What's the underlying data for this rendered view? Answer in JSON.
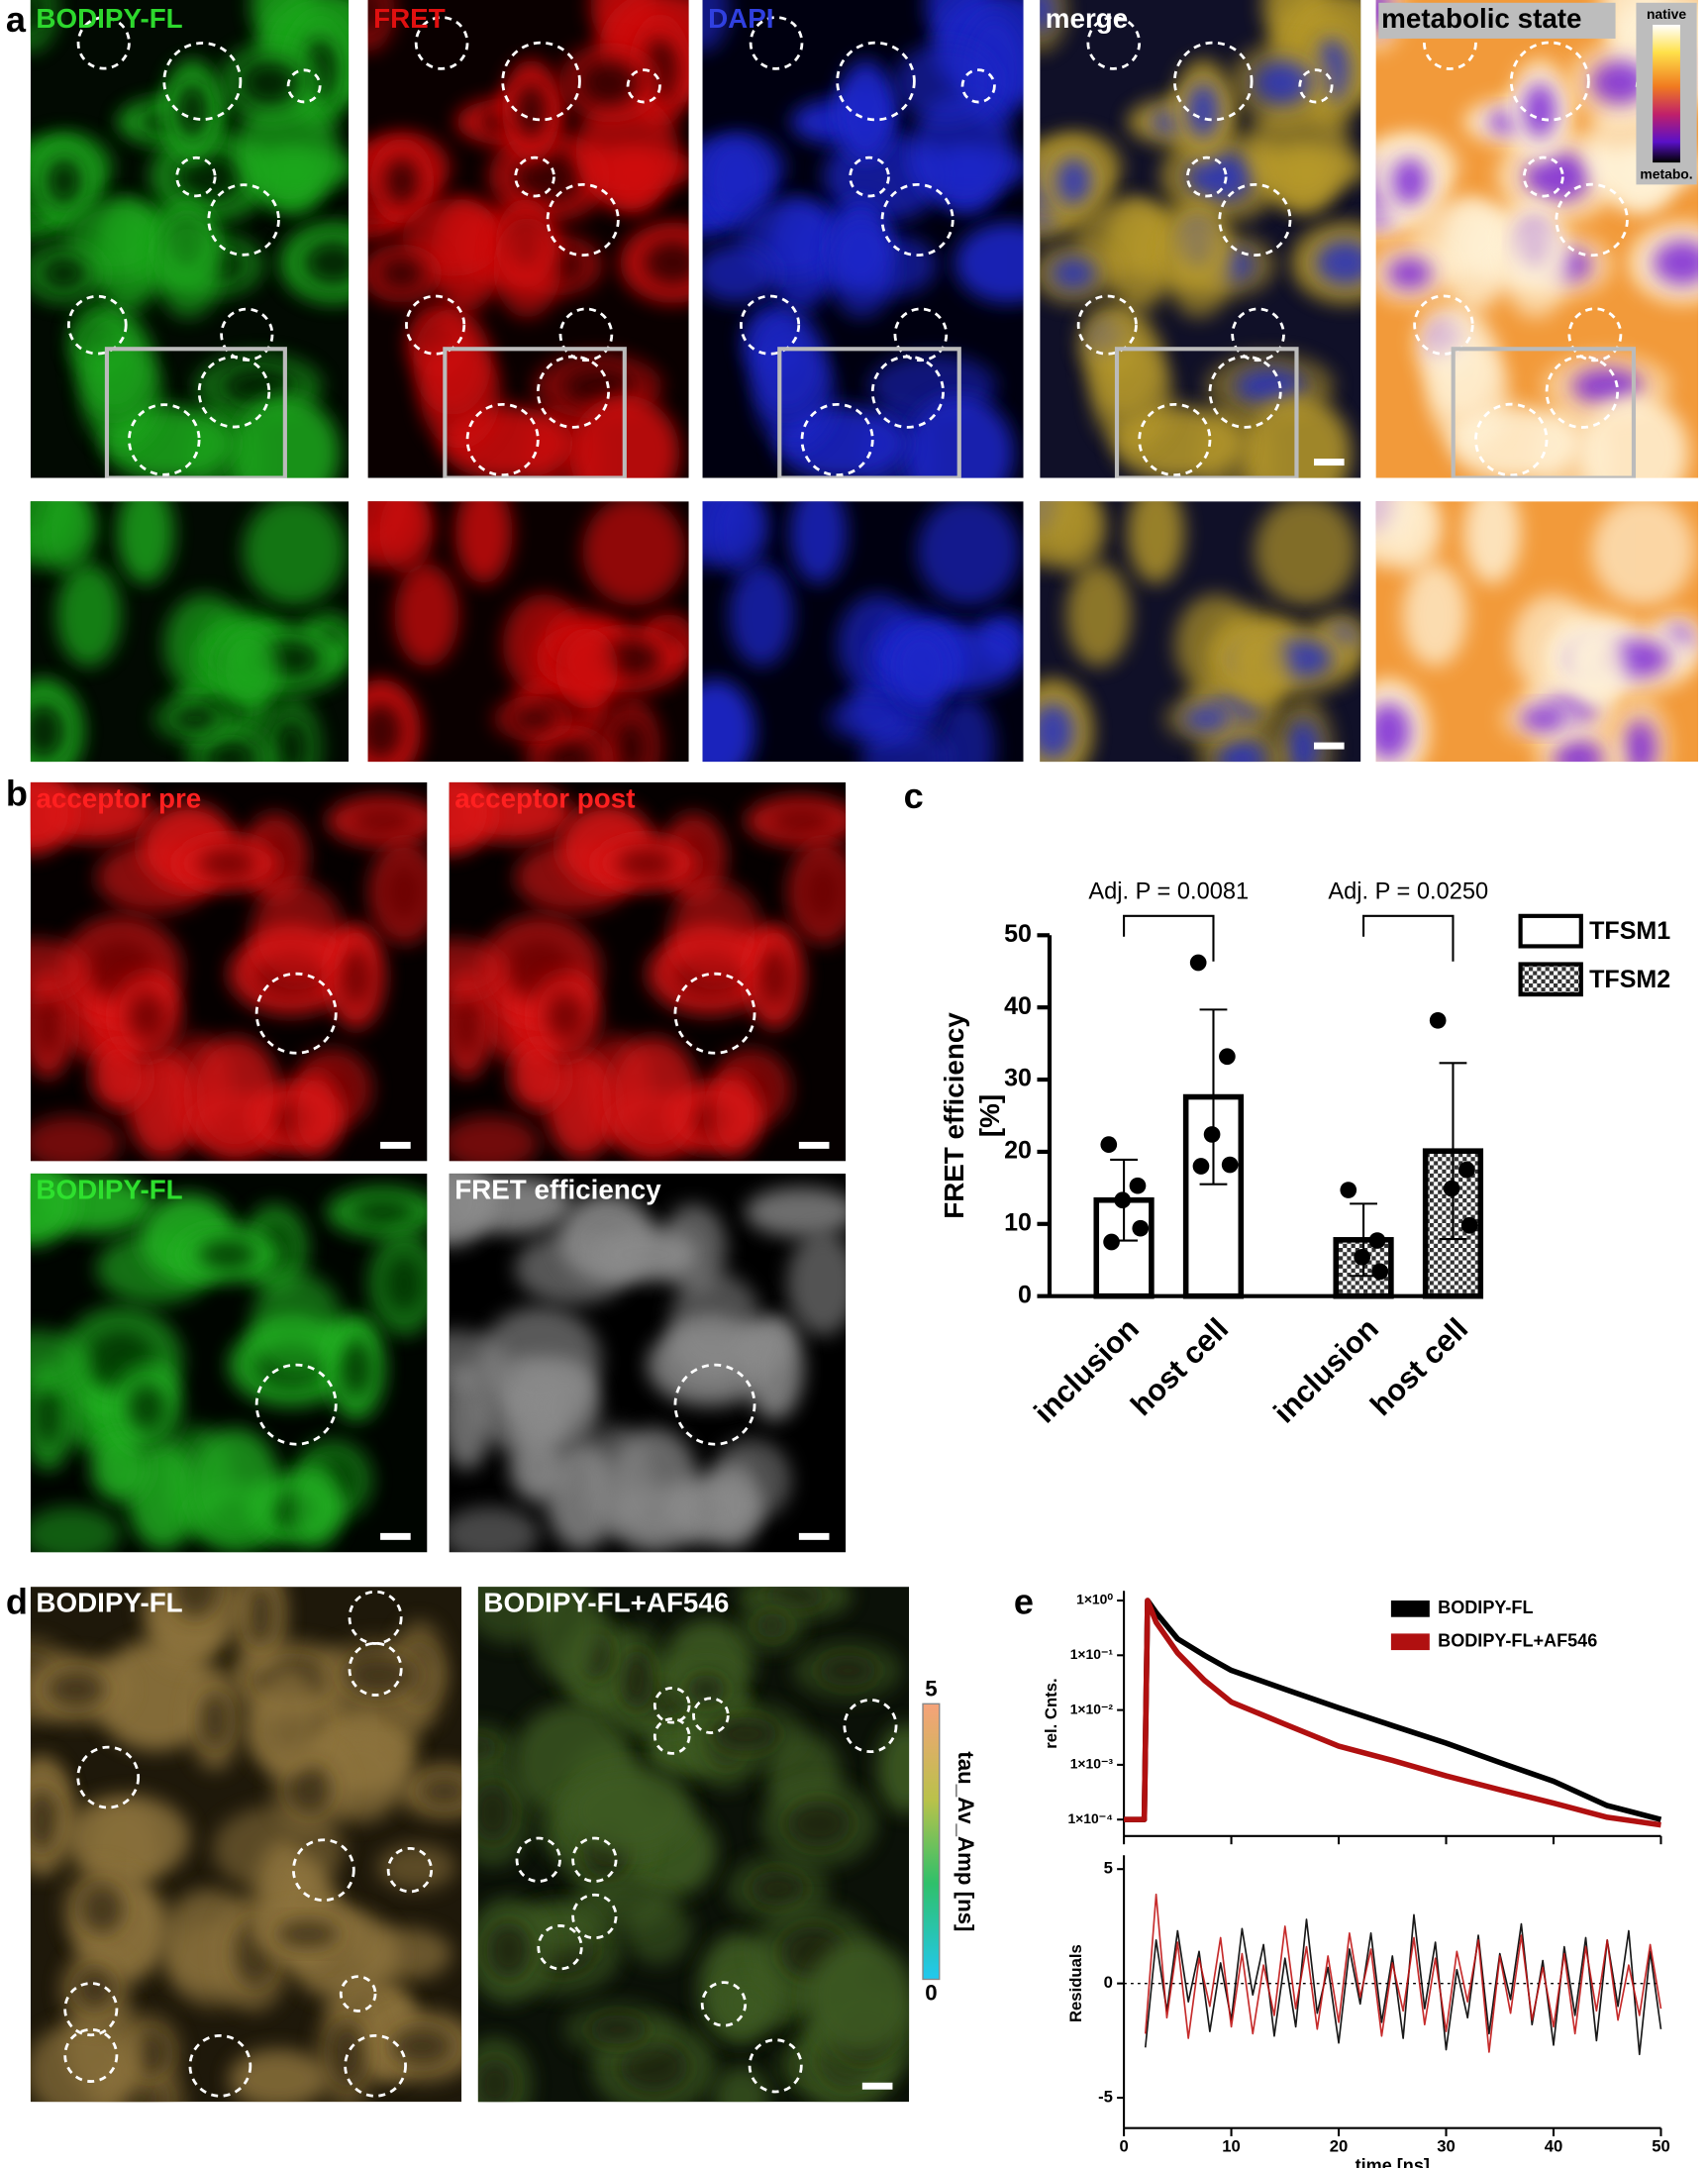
{
  "panel_labels": [
    "a",
    "b",
    "c",
    "d",
    "e"
  ],
  "panel_a": {
    "captions": [
      "BODIPY-FL",
      "FRET",
      "DAPI",
      "merge",
      "metabolic state"
    ],
    "colorbar": {
      "top": "native",
      "bottom": "metabo."
    }
  },
  "panel_b": {
    "captions": [
      "acceptor pre",
      "acceptor post",
      "BODIPY-FL",
      "FRET efficiency"
    ]
  },
  "panel_d": {
    "captions": [
      "BODIPY-FL",
      "BODIPY-FL+AF546"
    ],
    "colorbar": {
      "label": "tau_Av_Amp [ns]",
      "lim": [
        0,
        5
      ],
      "ticks": [
        0,
        5
      ]
    }
  },
  "chart_data": [
    {
      "type": "bar",
      "ylabel": [
        "FRET efficiency",
        "[%]"
      ],
      "categories": [
        "inclusion",
        "host cell",
        "inclusion",
        "host cell"
      ],
      "ylim": [
        0,
        50
      ],
      "yticks": [
        0,
        10,
        20,
        30,
        40,
        50
      ],
      "annotations": [
        "Adj. P = 0.0081",
        "Adj. P = 0.0250"
      ],
      "series": [
        {
          "name": "TFSM1",
          "color": "#ffffff",
          "pattern": "none",
          "values": [
            13.3,
            27.6,
            null,
            null
          ],
          "errors": [
            5.6,
            12.1,
            null,
            null
          ],
          "points": [
            [
              21,
              15.3,
              13.3,
              9.4,
              7.5
            ],
            [
              46.2,
              33.2,
              22.4,
              18.2,
              18.0
            ],
            null,
            null
          ]
        },
        {
          "name": "TFSM2",
          "color": "#ffffff",
          "pattern": "checker",
          "values": [
            null,
            null,
            7.8,
            20.1
          ],
          "errors": [
            null,
            null,
            5.0,
            12.2
          ],
          "points": [
            null,
            null,
            [
              14.7,
              7.7,
              5.4,
              3.4
            ],
            [
              38.2,
              17.5,
              14.9,
              9.8
            ]
          ]
        }
      ]
    },
    {
      "type": "line",
      "log_y": true,
      "ylabel": "rel. Cnts.",
      "xlim": [
        0,
        50
      ],
      "xticks": [
        0,
        10,
        20,
        30,
        40,
        50
      ],
      "ylim": [
        5e-05,
        1.5
      ],
      "yticks": [
        {
          "value": 1,
          "label": "1×10⁰"
        },
        {
          "value": 0.1,
          "label": "1×10⁻¹"
        },
        {
          "value": 0.01,
          "label": "1×10⁻²"
        },
        {
          "value": 0.001,
          "label": "1×10⁻³"
        },
        {
          "value": 0.0001,
          "label": "1×10⁻⁴"
        }
      ],
      "x": [
        0,
        1,
        1.9,
        2.2,
        3,
        5,
        7.5,
        10,
        15,
        20,
        25,
        30,
        35,
        40,
        45,
        50
      ],
      "series": [
        {
          "name": "BODIPY-FL",
          "color": "#000000",
          "values": [
            0.0001,
            0.0001,
            0.0001,
            1,
            0.6,
            0.2,
            0.1,
            0.053,
            0.024,
            0.011,
            0.0052,
            0.0025,
            0.0011,
            0.0005,
            0.00018,
            0.0001
          ]
        },
        {
          "name": "BODIPY-FL+AF546",
          "color": "#b01010",
          "values": [
            0.0001,
            0.0001,
            0.0001,
            1,
            0.4,
            0.11,
            0.035,
            0.014,
            0.0055,
            0.0022,
            0.0012,
            0.00063,
            0.00035,
            0.0002,
            0.00011,
            8e-05
          ]
        }
      ]
    },
    {
      "type": "line",
      "ylabel": "Residuals",
      "xlabel": "time [ns]",
      "xlim": [
        0,
        50
      ],
      "xticks": [
        0,
        10,
        20,
        30,
        40,
        50
      ],
      "ylim": [
        -5,
        5
      ],
      "yticks": [
        -5,
        0,
        5
      ],
      "x": [
        2,
        3,
        4,
        5,
        6,
        7,
        8,
        9,
        10,
        11,
        12,
        13,
        14,
        15,
        16,
        17,
        18,
        19,
        20,
        21,
        22,
        23,
        24,
        25,
        26,
        27,
        28,
        29,
        30,
        31,
        32,
        33,
        34,
        35,
        36,
        37,
        38,
        39,
        40,
        41,
        42,
        43,
        44,
        45,
        46,
        47,
        48,
        49,
        50
      ],
      "series": [
        {
          "name": "BODIPY-FL",
          "color": "#000000",
          "values": [
            -2.8,
            1.9,
            -1.2,
            2.3,
            -0.8,
            1.4,
            -2.1,
            0.9,
            -1.6,
            2.4,
            -0.5,
            1.7,
            -2.3,
            1.1,
            -1.9,
            2.8,
            -1.3,
            0.7,
            -2.6,
            1.5,
            -0.9,
            2.2,
            -1.7,
            1.2,
            -2.4,
            3.0,
            -1.1,
            1.8,
            -2.9,
            0.6,
            -1.5,
            2.1,
            -2.2,
            1.3,
            -0.7,
            2.6,
            -1.8,
            1.0,
            -2.7,
            1.6,
            -1.4,
            2.0,
            -2.5,
            1.9,
            -1.0,
            2.3,
            -3.1,
            1.4,
            -2.0
          ]
        },
        {
          "name": "BODIPY-FL+AF546",
          "color": "#c01515",
          "values": [
            -2.2,
            3.9,
            -1.5,
            1.8,
            -2.4,
            1.1,
            -1.0,
            2.0,
            -1.9,
            1.3,
            -2.2,
            0.8,
            -1.4,
            2.5,
            -1.1,
            1.6,
            -2.0,
            1.2,
            -1.7,
            2.2,
            -0.6,
            1.5,
            -2.3,
            0.9,
            -1.2,
            2.0,
            -1.8,
            1.1,
            -2.1,
            1.4,
            -0.8,
            1.9,
            -3.0,
            1.2,
            -1.3,
            2.1,
            -1.6,
            0.7,
            -1.9,
            1.3,
            -2.2,
            1.6,
            -1.2,
            1.9,
            -1.6,
            0.8,
            -1.4,
            1.7,
            -1.1
          ]
        }
      ]
    }
  ]
}
